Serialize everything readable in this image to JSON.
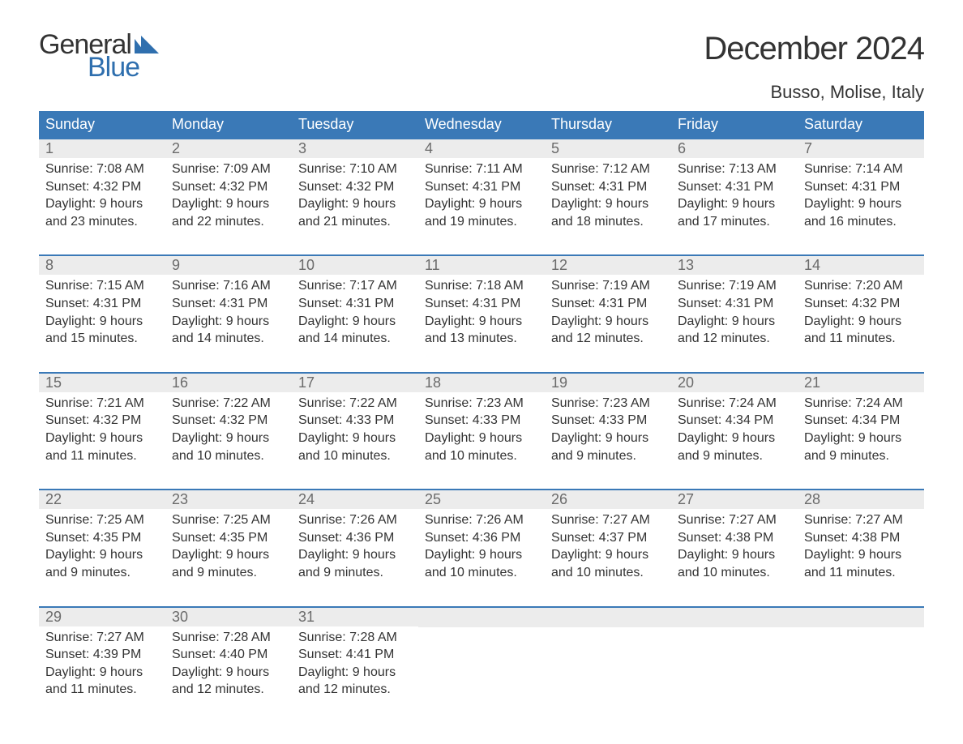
{
  "logo": {
    "text1": "General",
    "text2": "Blue",
    "icon_color": "#2f6fae"
  },
  "title": "December 2024",
  "location": "Busso, Molise, Italy",
  "colors": {
    "header_bg": "#3a79b7",
    "header_text": "#ffffff",
    "week_border": "#3a79b7",
    "daynum_bg": "#ececec",
    "daynum_text": "#6b6b6b",
    "body_text": "#333333",
    "logo_blue": "#2f6fae",
    "page_bg": "#ffffff"
  },
  "typography": {
    "title_fontsize": 40,
    "location_fontsize": 22,
    "dow_fontsize": 18,
    "daynum_fontsize": 18,
    "body_fontsize": 16,
    "font_family": "Arial"
  },
  "days_of_week": [
    "Sunday",
    "Monday",
    "Tuesday",
    "Wednesday",
    "Thursday",
    "Friday",
    "Saturday"
  ],
  "layout": {
    "columns": 7,
    "rows": 5,
    "first_day_column": 0,
    "num_days": 31
  },
  "days": [
    {
      "n": 1,
      "sunrise": "7:08 AM",
      "sunset": "4:32 PM",
      "daylight": "9 hours and 23 minutes."
    },
    {
      "n": 2,
      "sunrise": "7:09 AM",
      "sunset": "4:32 PM",
      "daylight": "9 hours and 22 minutes."
    },
    {
      "n": 3,
      "sunrise": "7:10 AM",
      "sunset": "4:32 PM",
      "daylight": "9 hours and 21 minutes."
    },
    {
      "n": 4,
      "sunrise": "7:11 AM",
      "sunset": "4:31 PM",
      "daylight": "9 hours and 19 minutes."
    },
    {
      "n": 5,
      "sunrise": "7:12 AM",
      "sunset": "4:31 PM",
      "daylight": "9 hours and 18 minutes."
    },
    {
      "n": 6,
      "sunrise": "7:13 AM",
      "sunset": "4:31 PM",
      "daylight": "9 hours and 17 minutes."
    },
    {
      "n": 7,
      "sunrise": "7:14 AM",
      "sunset": "4:31 PM",
      "daylight": "9 hours and 16 minutes."
    },
    {
      "n": 8,
      "sunrise": "7:15 AM",
      "sunset": "4:31 PM",
      "daylight": "9 hours and 15 minutes."
    },
    {
      "n": 9,
      "sunrise": "7:16 AM",
      "sunset": "4:31 PM",
      "daylight": "9 hours and 14 minutes."
    },
    {
      "n": 10,
      "sunrise": "7:17 AM",
      "sunset": "4:31 PM",
      "daylight": "9 hours and 14 minutes."
    },
    {
      "n": 11,
      "sunrise": "7:18 AM",
      "sunset": "4:31 PM",
      "daylight": "9 hours and 13 minutes."
    },
    {
      "n": 12,
      "sunrise": "7:19 AM",
      "sunset": "4:31 PM",
      "daylight": "9 hours and 12 minutes."
    },
    {
      "n": 13,
      "sunrise": "7:19 AM",
      "sunset": "4:31 PM",
      "daylight": "9 hours and 12 minutes."
    },
    {
      "n": 14,
      "sunrise": "7:20 AM",
      "sunset": "4:32 PM",
      "daylight": "9 hours and 11 minutes."
    },
    {
      "n": 15,
      "sunrise": "7:21 AM",
      "sunset": "4:32 PM",
      "daylight": "9 hours and 11 minutes."
    },
    {
      "n": 16,
      "sunrise": "7:22 AM",
      "sunset": "4:32 PM",
      "daylight": "9 hours and 10 minutes."
    },
    {
      "n": 17,
      "sunrise": "7:22 AM",
      "sunset": "4:33 PM",
      "daylight": "9 hours and 10 minutes."
    },
    {
      "n": 18,
      "sunrise": "7:23 AM",
      "sunset": "4:33 PM",
      "daylight": "9 hours and 10 minutes."
    },
    {
      "n": 19,
      "sunrise": "7:23 AM",
      "sunset": "4:33 PM",
      "daylight": "9 hours and 9 minutes."
    },
    {
      "n": 20,
      "sunrise": "7:24 AM",
      "sunset": "4:34 PM",
      "daylight": "9 hours and 9 minutes."
    },
    {
      "n": 21,
      "sunrise": "7:24 AM",
      "sunset": "4:34 PM",
      "daylight": "9 hours and 9 minutes."
    },
    {
      "n": 22,
      "sunrise": "7:25 AM",
      "sunset": "4:35 PM",
      "daylight": "9 hours and 9 minutes."
    },
    {
      "n": 23,
      "sunrise": "7:25 AM",
      "sunset": "4:35 PM",
      "daylight": "9 hours and 9 minutes."
    },
    {
      "n": 24,
      "sunrise": "7:26 AM",
      "sunset": "4:36 PM",
      "daylight": "9 hours and 9 minutes."
    },
    {
      "n": 25,
      "sunrise": "7:26 AM",
      "sunset": "4:36 PM",
      "daylight": "9 hours and 10 minutes."
    },
    {
      "n": 26,
      "sunrise": "7:27 AM",
      "sunset": "4:37 PM",
      "daylight": "9 hours and 10 minutes."
    },
    {
      "n": 27,
      "sunrise": "7:27 AM",
      "sunset": "4:38 PM",
      "daylight": "9 hours and 10 minutes."
    },
    {
      "n": 28,
      "sunrise": "7:27 AM",
      "sunset": "4:38 PM",
      "daylight": "9 hours and 11 minutes."
    },
    {
      "n": 29,
      "sunrise": "7:27 AM",
      "sunset": "4:39 PM",
      "daylight": "9 hours and 11 minutes."
    },
    {
      "n": 30,
      "sunrise": "7:28 AM",
      "sunset": "4:40 PM",
      "daylight": "9 hours and 12 minutes."
    },
    {
      "n": 31,
      "sunrise": "7:28 AM",
      "sunset": "4:41 PM",
      "daylight": "9 hours and 12 minutes."
    }
  ],
  "labels": {
    "sunrise_prefix": "Sunrise: ",
    "sunset_prefix": "Sunset: ",
    "daylight_prefix": "Daylight: "
  }
}
